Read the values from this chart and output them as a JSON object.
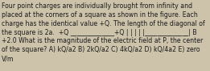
{
  "line1": "Four point charges are individually brought from infinity and",
  "line2": "placed at the corners of a square as shown in the figure. Each",
  "line3": "charge has the identical value +Q. The length of the diagonal of",
  "line4": "the square is 2a.  +Q ______________+Q | | | | |______________| B",
  "line5": "+2.0 What is the magnitude of the electric field at P, the center",
  "line6": "of the square? A) kQ/a2 B) 2kQ/a2 C) 4kQ/a2 D) kQ/4a2 E) zero",
  "line7": "V/m",
  "bg_color": "#cdc3ab",
  "text_color": "#1a1a1a",
  "fontsize": 5.6,
  "fig_width": 2.61,
  "fig_height": 0.88,
  "dpi": 100
}
